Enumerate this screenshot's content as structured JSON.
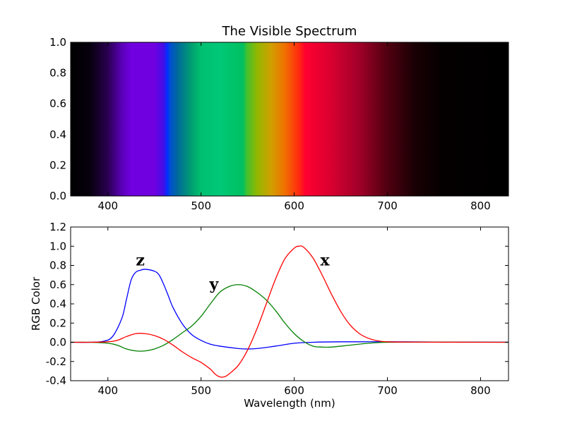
{
  "chart_data": [
    {
      "type": "heatmap",
      "title": "The Visible Spectrum",
      "xlim": [
        360,
        830
      ],
      "ylim": [
        0,
        1
      ],
      "xticks": [
        "400",
        "500",
        "600",
        "700",
        "800"
      ],
      "yticks": [
        "0.0",
        "0.2",
        "0.4",
        "0.6",
        "0.8",
        "1.0"
      ],
      "color_stops": [
        {
          "x": 360,
          "color": "#000000"
        },
        {
          "x": 380,
          "color": "#06000c"
        },
        {
          "x": 400,
          "color": "#2a0050"
        },
        {
          "x": 415,
          "color": "#5a00b8"
        },
        {
          "x": 425,
          "color": "#7000e0"
        },
        {
          "x": 450,
          "color": "#7000e0"
        },
        {
          "x": 460,
          "color": "#4010e8"
        },
        {
          "x": 464,
          "color": "#0030ff"
        },
        {
          "x": 467,
          "color": "#0050d0"
        },
        {
          "x": 475,
          "color": "#006a9a"
        },
        {
          "x": 490,
          "color": "#00a070"
        },
        {
          "x": 500,
          "color": "#00c070"
        },
        {
          "x": 520,
          "color": "#00c878"
        },
        {
          "x": 545,
          "color": "#00c060"
        },
        {
          "x": 549,
          "color": "#40c030"
        },
        {
          "x": 560,
          "color": "#90b800"
        },
        {
          "x": 575,
          "color": "#d0a000"
        },
        {
          "x": 590,
          "color": "#f07000"
        },
        {
          "x": 605,
          "color": "#ff2a10"
        },
        {
          "x": 612,
          "color": "#ff0030"
        },
        {
          "x": 640,
          "color": "#d80030"
        },
        {
          "x": 670,
          "color": "#a00028"
        },
        {
          "x": 700,
          "color": "#500010"
        },
        {
          "x": 730,
          "color": "#180004"
        },
        {
          "x": 760,
          "color": "#040000"
        },
        {
          "x": 830,
          "color": "#000000"
        }
      ]
    },
    {
      "type": "line",
      "xlabel": "Wavelength (nm)",
      "ylabel": "RGB Color",
      "xlim": [
        360,
        830
      ],
      "ylim": [
        -0.4,
        1.2
      ],
      "xticks": [
        "400",
        "500",
        "600",
        "700",
        "800"
      ],
      "yticks": [
        "-0.4",
        "-0.2",
        "0.0",
        "0.2",
        "0.4",
        "0.6",
        "0.8",
        "1.0",
        "1.2"
      ],
      "annotations": [
        {
          "text": "z",
          "x": 430,
          "y": 0.8
        },
        {
          "text": "y",
          "x": 509,
          "y": 0.55
        },
        {
          "text": "x",
          "x": 628,
          "y": 0.8
        }
      ],
      "series": [
        {
          "color": "#0000ff",
          "x": [
            360,
            380,
            395,
            405,
            415,
            420,
            425,
            430,
            435,
            440,
            450,
            455,
            460,
            465,
            470,
            480,
            490,
            500,
            510,
            520,
            540,
            550,
            560,
            580,
            600,
            620,
            650,
            700,
            750,
            800,
            830
          ],
          "y": [
            0,
            0,
            0.01,
            0.06,
            0.25,
            0.45,
            0.65,
            0.73,
            0.75,
            0.76,
            0.74,
            0.7,
            0.6,
            0.48,
            0.36,
            0.19,
            0.08,
            0.02,
            -0.02,
            -0.04,
            -0.065,
            -0.07,
            -0.065,
            -0.04,
            -0.01,
            0,
            0.005,
            0.005,
            0.003,
            0.002,
            0.001
          ]
        },
        {
          "color": "#008000",
          "x": [
            360,
            380,
            400,
            410,
            420,
            430,
            440,
            450,
            460,
            470,
            480,
            490,
            500,
            510,
            520,
            530,
            540,
            550,
            560,
            570,
            580,
            590,
            600,
            610,
            620,
            630,
            640,
            660,
            680,
            700,
            750,
            800,
            830
          ],
          "y": [
            0,
            0,
            -0.01,
            -0.03,
            -0.07,
            -0.09,
            -0.09,
            -0.07,
            -0.03,
            0.03,
            0.1,
            0.17,
            0.27,
            0.4,
            0.52,
            0.58,
            0.6,
            0.58,
            0.52,
            0.44,
            0.33,
            0.2,
            0.09,
            0.01,
            -0.04,
            -0.05,
            -0.05,
            -0.03,
            -0.01,
            0,
            0.002,
            0.001,
            0
          ]
        },
        {
          "color": "#ff0000",
          "x": [
            360,
            380,
            400,
            410,
            420,
            430,
            440,
            450,
            460,
            470,
            480,
            490,
            500,
            510,
            515,
            520,
            525,
            530,
            540,
            550,
            560,
            570,
            580,
            590,
            600,
            605,
            610,
            620,
            630,
            640,
            650,
            660,
            670,
            680,
            690,
            700,
            720,
            750,
            800,
            830
          ],
          "y": [
            0,
            0,
            0.005,
            0.02,
            0.06,
            0.09,
            0.09,
            0.07,
            0.03,
            -0.03,
            -0.1,
            -0.16,
            -0.21,
            -0.28,
            -0.33,
            -0.36,
            -0.36,
            -0.33,
            -0.24,
            -0.08,
            0.14,
            0.4,
            0.66,
            0.87,
            0.98,
            1.0,
            0.99,
            0.88,
            0.7,
            0.5,
            0.32,
            0.18,
            0.09,
            0.04,
            0.015,
            0.005,
            0.002,
            0.001,
            0,
            0
          ]
        }
      ]
    }
  ]
}
